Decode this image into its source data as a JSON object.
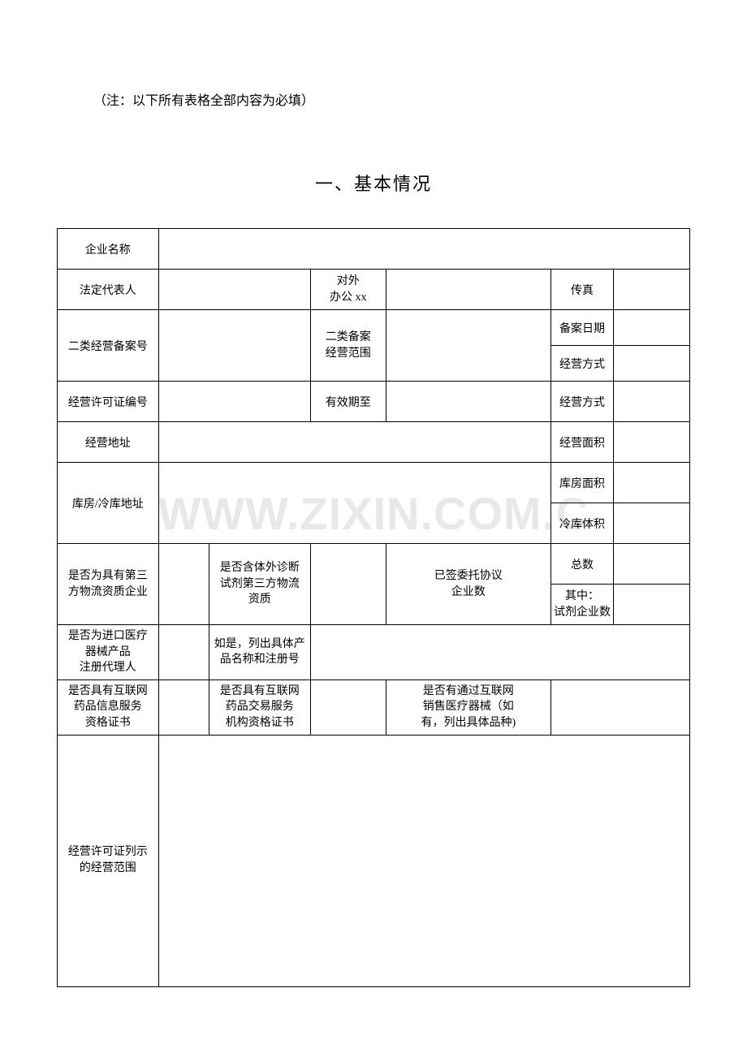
{
  "note": "（注：以下所有表格全部内容为必填）",
  "section_title": "一、基本情况",
  "watermark": "WWW.ZIXIN.COM.C",
  "labels": {
    "company_name": "企业名称",
    "legal_rep": "法定代表人",
    "office_phone_l1": "对外",
    "office_phone_l2": "办公 xx",
    "fax": "传真",
    "class2_filing_no": "二类经营备案号",
    "class2_scope_l1": "二类备案",
    "class2_scope_l2": "经营范围",
    "filing_date": "备案日期",
    "business_mode": "经营方式",
    "license_no": "经营许可证编号",
    "valid_until": "有效期至",
    "business_mode2": "经营方式",
    "business_address": "经营地址",
    "business_area": "经营面积",
    "warehouse_address": "库房/冷库地址",
    "warehouse_area": "库房面积",
    "cold_storage_vol": "冷库体积",
    "third_party_l1": "是否为具有第三",
    "third_party_l2": "方物流资质企业",
    "ivd_third_party_l1": "是否含体外诊断",
    "ivd_third_party_l2": "试剂第三方物流",
    "ivd_third_party_l3": "资质",
    "signed_agreement_l1": "已签委托协议",
    "signed_agreement_l2": "企业数",
    "total_count": "总数",
    "reagent_count_l1": "其中：",
    "reagent_count_l2": "试剂企业数",
    "import_agent_l1": "是否为进口医疗",
    "import_agent_l2": "器械产品",
    "import_agent_l3": "注册代理人",
    "import_list_l1": "如是，列出具体产",
    "import_list_l2": "品名称和注册号",
    "internet_info_l1": "是否具有互联网",
    "internet_info_l2": "药品信息服务",
    "internet_info_l3": "资格证书",
    "internet_trade_l1": "是否具有互联网",
    "internet_trade_l2": "药品交易服务",
    "internet_trade_l3": "机构资格证书",
    "internet_sale_l1": "是否有通过互联网",
    "internet_sale_l2": "销售医疗器械（如",
    "internet_sale_l3": "有，列出具体品种)",
    "license_scope_l1": "经营许可证列示",
    "license_scope_l2": "的经营范围"
  },
  "colwidths": {
    "c1": "16%",
    "c2": "8%",
    "c3": "16%",
    "c4": "12%",
    "c5": "8%",
    "c6": "18%",
    "c7": "10%",
    "c8": "12%"
  }
}
